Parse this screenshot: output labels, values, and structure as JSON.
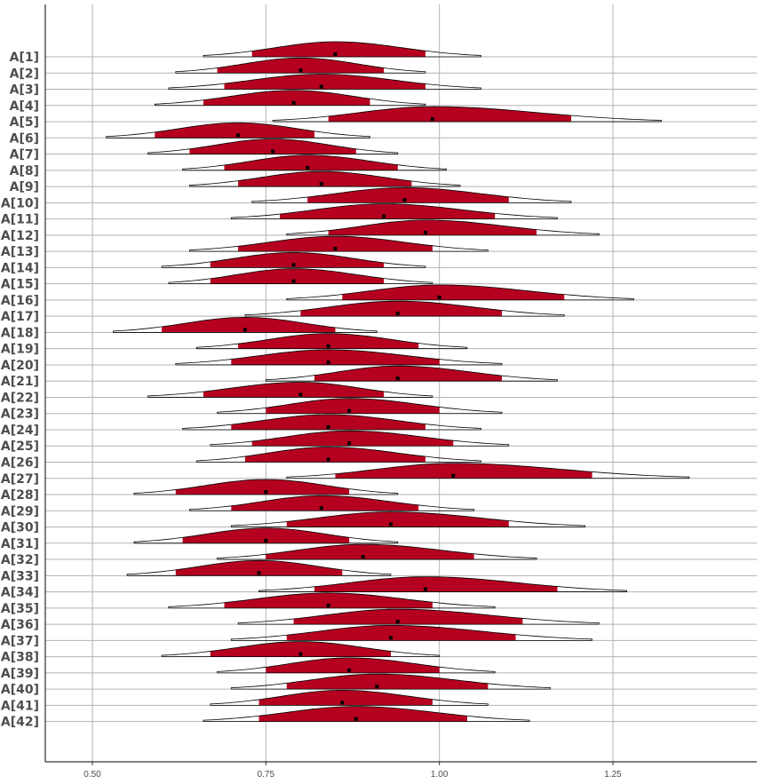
{
  "chart_data": {
    "type": "ridgeline",
    "title": "",
    "xlabel": "",
    "ylabel": "",
    "xlim": [
      0.37,
      1.38
    ],
    "xticks": [
      0.5,
      0.75,
      1.0,
      1.25
    ],
    "xtick_labels": [
      "0.50",
      "0.75",
      "1.00",
      "1.25"
    ],
    "grid": true,
    "legend": "none",
    "fill_color": "#B5001F",
    "line_color": "#000000",
    "grid_color": "#b3b3b3",
    "series": [
      {
        "name": "A[1]",
        "lo": 0.66,
        "q1": 0.73,
        "median": 0.85,
        "q3": 0.98,
        "hi": 1.06
      },
      {
        "name": "A[2]",
        "lo": 0.62,
        "q1": 0.68,
        "median": 0.8,
        "q3": 0.92,
        "hi": 0.98
      },
      {
        "name": "A[3]",
        "lo": 0.61,
        "q1": 0.69,
        "median": 0.83,
        "q3": 0.98,
        "hi": 1.06
      },
      {
        "name": "A[4]",
        "lo": 0.59,
        "q1": 0.66,
        "median": 0.79,
        "q3": 0.9,
        "hi": 0.98
      },
      {
        "name": "A[5]",
        "lo": 0.76,
        "q1": 0.84,
        "median": 0.99,
        "q3": 1.19,
        "hi": 1.32
      },
      {
        "name": "A[6]",
        "lo": 0.52,
        "q1": 0.59,
        "median": 0.71,
        "q3": 0.82,
        "hi": 0.9
      },
      {
        "name": "A[7]",
        "lo": 0.58,
        "q1": 0.64,
        "median": 0.76,
        "q3": 0.88,
        "hi": 0.94
      },
      {
        "name": "A[8]",
        "lo": 0.63,
        "q1": 0.69,
        "median": 0.81,
        "q3": 0.94,
        "hi": 1.01
      },
      {
        "name": "A[9]",
        "lo": 0.64,
        "q1": 0.71,
        "median": 0.83,
        "q3": 0.96,
        "hi": 1.03
      },
      {
        "name": "A[10]",
        "lo": 0.73,
        "q1": 0.81,
        "median": 0.95,
        "q3": 1.1,
        "hi": 1.19
      },
      {
        "name": "A[11]",
        "lo": 0.7,
        "q1": 0.77,
        "median": 0.92,
        "q3": 1.08,
        "hi": 1.17
      },
      {
        "name": "A[12]",
        "lo": 0.78,
        "q1": 0.84,
        "median": 0.98,
        "q3": 1.14,
        "hi": 1.23
      },
      {
        "name": "A[13]",
        "lo": 0.64,
        "q1": 0.71,
        "median": 0.85,
        "q3": 0.99,
        "hi": 1.07
      },
      {
        "name": "A[14]",
        "lo": 0.6,
        "q1": 0.67,
        "median": 0.79,
        "q3": 0.92,
        "hi": 0.98
      },
      {
        "name": "A[15]",
        "lo": 0.61,
        "q1": 0.67,
        "median": 0.79,
        "q3": 0.92,
        "hi": 0.99
      },
      {
        "name": "A[16]",
        "lo": 0.78,
        "q1": 0.86,
        "median": 1.0,
        "q3": 1.18,
        "hi": 1.28
      },
      {
        "name": "A[17]",
        "lo": 0.72,
        "q1": 0.8,
        "median": 0.94,
        "q3": 1.09,
        "hi": 1.18
      },
      {
        "name": "A[18]",
        "lo": 0.53,
        "q1": 0.6,
        "median": 0.72,
        "q3": 0.85,
        "hi": 0.91
      },
      {
        "name": "A[19]",
        "lo": 0.65,
        "q1": 0.71,
        "median": 0.84,
        "q3": 0.97,
        "hi": 1.04
      },
      {
        "name": "A[20]",
        "lo": 0.62,
        "q1": 0.7,
        "median": 0.84,
        "q3": 1.0,
        "hi": 1.09
      },
      {
        "name": "A[21]",
        "lo": 0.75,
        "q1": 0.82,
        "median": 0.94,
        "q3": 1.09,
        "hi": 1.17
      },
      {
        "name": "A[22]",
        "lo": 0.58,
        "q1": 0.66,
        "median": 0.8,
        "q3": 0.92,
        "hi": 0.99
      },
      {
        "name": "A[23]",
        "lo": 0.68,
        "q1": 0.75,
        "median": 0.87,
        "q3": 1.0,
        "hi": 1.09
      },
      {
        "name": "A[24]",
        "lo": 0.63,
        "q1": 0.7,
        "median": 0.84,
        "q3": 0.98,
        "hi": 1.06
      },
      {
        "name": "A[25]",
        "lo": 0.67,
        "q1": 0.73,
        "median": 0.87,
        "q3": 1.02,
        "hi": 1.1
      },
      {
        "name": "A[26]",
        "lo": 0.65,
        "q1": 0.72,
        "median": 0.84,
        "q3": 0.98,
        "hi": 1.06
      },
      {
        "name": "A[27]",
        "lo": 0.78,
        "q1": 0.85,
        "median": 1.02,
        "q3": 1.22,
        "hi": 1.36
      },
      {
        "name": "A[28]",
        "lo": 0.56,
        "q1": 0.62,
        "median": 0.75,
        "q3": 0.87,
        "hi": 0.94
      },
      {
        "name": "A[29]",
        "lo": 0.64,
        "q1": 0.7,
        "median": 0.83,
        "q3": 0.97,
        "hi": 1.05
      },
      {
        "name": "A[30]",
        "lo": 0.7,
        "q1": 0.78,
        "median": 0.93,
        "q3": 1.1,
        "hi": 1.21
      },
      {
        "name": "A[31]",
        "lo": 0.56,
        "q1": 0.63,
        "median": 0.75,
        "q3": 0.87,
        "hi": 0.94
      },
      {
        "name": "A[32]",
        "lo": 0.68,
        "q1": 0.75,
        "median": 0.89,
        "q3": 1.05,
        "hi": 1.14
      },
      {
        "name": "A[33]",
        "lo": 0.55,
        "q1": 0.62,
        "median": 0.74,
        "q3": 0.86,
        "hi": 0.93
      },
      {
        "name": "A[34]",
        "lo": 0.74,
        "q1": 0.82,
        "median": 0.98,
        "q3": 1.17,
        "hi": 1.27
      },
      {
        "name": "A[35]",
        "lo": 0.61,
        "q1": 0.69,
        "median": 0.84,
        "q3": 0.99,
        "hi": 1.08
      },
      {
        "name": "A[36]",
        "lo": 0.71,
        "q1": 0.79,
        "median": 0.94,
        "q3": 1.12,
        "hi": 1.23
      },
      {
        "name": "A[37]",
        "lo": 0.7,
        "q1": 0.78,
        "median": 0.93,
        "q3": 1.11,
        "hi": 1.22
      },
      {
        "name": "A[38]",
        "lo": 0.6,
        "q1": 0.67,
        "median": 0.8,
        "q3": 0.93,
        "hi": 1.0
      },
      {
        "name": "A[39]",
        "lo": 0.68,
        "q1": 0.75,
        "median": 0.87,
        "q3": 1.0,
        "hi": 1.08
      },
      {
        "name": "A[40]",
        "lo": 0.7,
        "q1": 0.78,
        "median": 0.91,
        "q3": 1.07,
        "hi": 1.16
      },
      {
        "name": "A[41]",
        "lo": 0.67,
        "q1": 0.74,
        "median": 0.86,
        "q3": 0.99,
        "hi": 1.07
      },
      {
        "name": "A[42]",
        "lo": 0.66,
        "q1": 0.74,
        "median": 0.88,
        "q3": 1.04,
        "hi": 1.13
      }
    ]
  }
}
